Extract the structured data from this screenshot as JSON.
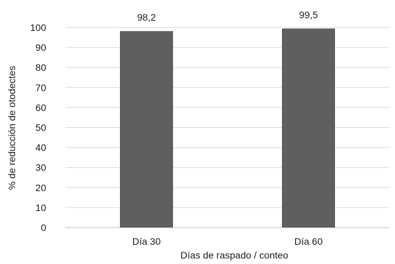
{
  "chart_data": {
    "type": "bar",
    "categories": [
      "Día  30",
      "Día 60"
    ],
    "values": [
      98.2,
      99.5
    ],
    "value_labels": [
      "98,2",
      "99,5"
    ],
    "ylim": [
      0,
      100
    ],
    "yticks": [
      0,
      10,
      20,
      30,
      40,
      50,
      60,
      70,
      80,
      90,
      100
    ],
    "title": "",
    "xlabel": "Días de raspado / conteo",
    "ylabel": "% de reducción de otodectes",
    "grid": true,
    "legend": "none",
    "colors": {
      "bar": "#5f5f5f",
      "grid": "#d9d9d9",
      "axis": "#bfbfbf"
    }
  }
}
